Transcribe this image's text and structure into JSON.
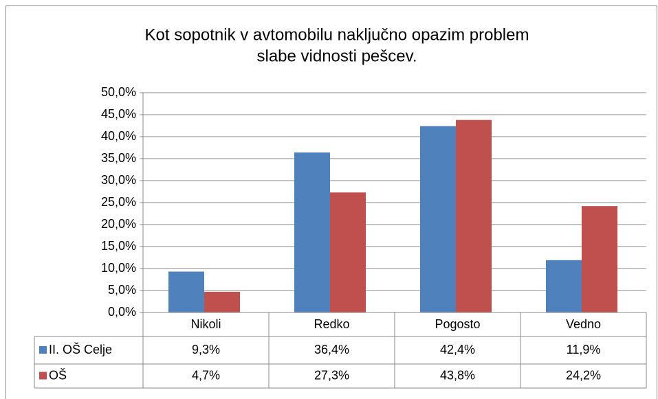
{
  "chart_data": {
    "type": "bar",
    "title": [
      "Kot sopotnik v avtomobilu naključno opazim problem",
      "slabe vidnosti pešcev."
    ],
    "categories": [
      "Nikoli",
      "Redko",
      "Pogosto",
      "Vedno"
    ],
    "series": [
      {
        "name": "II. OŠ Celje",
        "color": "#4f81bd",
        "values": [
          9.3,
          36.4,
          42.4,
          11.9
        ],
        "value_labels": [
          "9,3%",
          "36,4%",
          "42,4%",
          "11,9%"
        ]
      },
      {
        "name": "OŠ",
        "color": "#c0504d",
        "values": [
          4.7,
          27.3,
          43.8,
          24.2
        ],
        "value_labels": [
          "4,7%",
          "27,3%",
          "43,8%",
          "24,2%"
        ]
      }
    ],
    "ylim": [
      0,
      50
    ],
    "yticks": [
      {
        "value": 0,
        "label": "0,0%"
      },
      {
        "value": 5,
        "label": "5,0%"
      },
      {
        "value": 10,
        "label": "10,0%"
      },
      {
        "value": 15,
        "label": "15,0%"
      },
      {
        "value": 20,
        "label": "20,0%"
      },
      {
        "value": 25,
        "label": "25,0%"
      },
      {
        "value": 30,
        "label": "30,0%"
      },
      {
        "value": 35,
        "label": "35,0%"
      },
      {
        "value": 40,
        "label": "40,0%"
      },
      {
        "value": 45,
        "label": "45,0%"
      },
      {
        "value": 50,
        "label": "50,0%"
      }
    ],
    "grid": true
  }
}
